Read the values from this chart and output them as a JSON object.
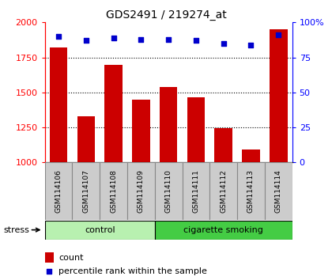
{
  "title": "GDS2491 / 219274_at",
  "samples": [
    "GSM114106",
    "GSM114107",
    "GSM114108",
    "GSM114109",
    "GSM114110",
    "GSM114111",
    "GSM114112",
    "GSM114113",
    "GSM114114"
  ],
  "counts": [
    1820,
    1330,
    1695,
    1450,
    1540,
    1465,
    1245,
    1090,
    1950
  ],
  "percentiles": [
    90,
    87,
    89,
    88,
    88,
    87,
    85,
    84,
    91
  ],
  "groups": [
    {
      "label": "control",
      "start": 0,
      "end": 4,
      "color": "#b8f0b0"
    },
    {
      "label": "cigarette smoking",
      "start": 4,
      "end": 9,
      "color": "#44cc44"
    }
  ],
  "bar_color": "#cc0000",
  "dot_color": "#0000cc",
  "ylim_left": [
    1000,
    2000
  ],
  "ylim_right": [
    0,
    100
  ],
  "yticks_left": [
    1000,
    1250,
    1500,
    1750,
    2000
  ],
  "yticks_right": [
    0,
    25,
    50,
    75,
    100
  ],
  "ytick_right_labels": [
    "0",
    "25",
    "50",
    "75",
    "100%"
  ],
  "bg_color": "#ffffff",
  "sample_box_color": "#cccccc",
  "sample_box_edge": "#888888",
  "stress_label": "stress",
  "legend_count": "count",
  "legend_pct": "percentile rank within the sample"
}
